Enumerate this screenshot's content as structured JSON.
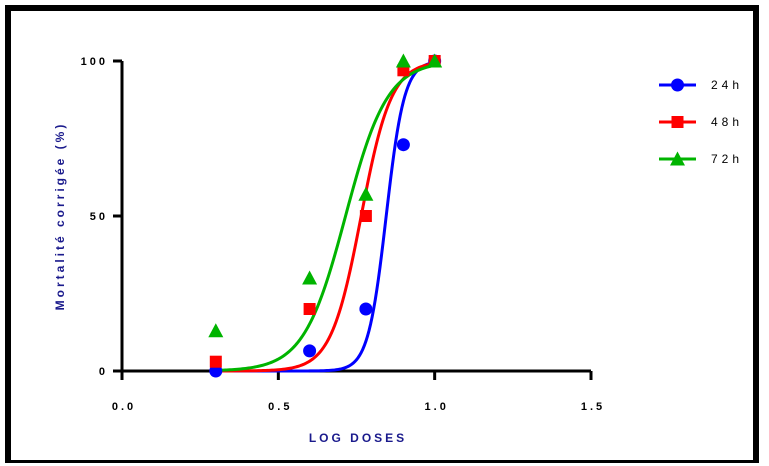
{
  "chart_data": {
    "type": "scatter",
    "xlabel": "LOG DOSES",
    "ylabel": "Mortalité corrigée (%)",
    "xlim": [
      0,
      1.5
    ],
    "ylim": [
      0,
      100
    ],
    "x_ticks": [
      "0.0",
      "0.5",
      "1.0",
      "1.5"
    ],
    "y_ticks": [
      "0",
      "50",
      "100"
    ],
    "legend_position": "top-right",
    "series": [
      {
        "name": "24h",
        "color": "#0000ff",
        "marker": "circle",
        "x": [
          0.3,
          0.6,
          0.78,
          0.9,
          1.0
        ],
        "y": [
          0,
          6.5,
          20,
          73,
          100
        ],
        "fit": {
          "top": 100,
          "log_ec50": 0.845,
          "hill": 15
        }
      },
      {
        "name": "48h",
        "color": "#ff0000",
        "marker": "square",
        "x": [
          0.3,
          0.6,
          0.78,
          0.9,
          1.0
        ],
        "y": [
          3,
          20,
          50,
          97,
          100
        ],
        "fit": {
          "top": 100,
          "log_ec50": 0.765,
          "hill": 9
        }
      },
      {
        "name": "72h",
        "color": "#00b400",
        "marker": "triangle",
        "x": [
          0.3,
          0.6,
          0.78,
          0.9,
          1.0
        ],
        "y": [
          13,
          30,
          57,
          100,
          100
        ],
        "fit": {
          "top": 100,
          "log_ec50": 0.715,
          "hill": 6.5
        }
      }
    ]
  }
}
